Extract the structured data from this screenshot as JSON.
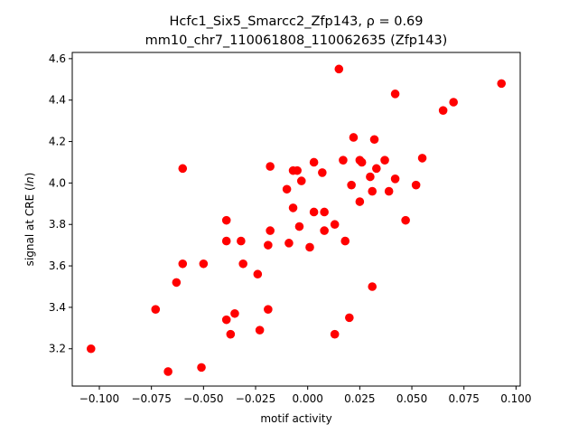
{
  "chart_data": {
    "type": "scatter",
    "title_line1_prefix": "Hcfc1_Six5_Smarcc2_Zfp143, ",
    "title_line1_rho": "ρ = 0.69",
    "title_line2": "mm10_chr7_110061808_110062635 (Zfp143)",
    "xlabel": "motif activity",
    "ylabel_prefix": "signal at CRE (",
    "ylabel_italic": "ln",
    "ylabel_suffix": ")",
    "xlim": [
      -0.113,
      0.102
    ],
    "ylim": [
      3.02,
      4.63
    ],
    "x_ticks": [
      -0.1,
      -0.075,
      -0.05,
      -0.025,
      0.0,
      0.025,
      0.05,
      0.075,
      0.1
    ],
    "x_tick_labels": [
      "−0.100",
      "−0.075",
      "−0.050",
      "−0.025",
      "0.000",
      "0.025",
      "0.050",
      "0.075",
      "0.100"
    ],
    "y_ticks": [
      3.2,
      3.4,
      3.6,
      3.8,
      4.0,
      4.2,
      4.4,
      4.6
    ],
    "y_tick_labels": [
      "3.2",
      "3.4",
      "3.6",
      "3.8",
      "4.0",
      "4.2",
      "4.4",
      "4.6"
    ],
    "grid": false,
    "marker_color": "#ff0000",
    "points": [
      [
        -0.104,
        3.2
      ],
      [
        -0.073,
        3.39
      ],
      [
        -0.067,
        3.09
      ],
      [
        -0.063,
        3.52
      ],
      [
        -0.06,
        4.07
      ],
      [
        -0.06,
        3.61
      ],
      [
        -0.05,
        3.61
      ],
      [
        -0.051,
        3.11
      ],
      [
        -0.039,
        3.82
      ],
      [
        -0.039,
        3.72
      ],
      [
        -0.039,
        3.34
      ],
      [
        -0.037,
        3.27
      ],
      [
        -0.035,
        3.37
      ],
      [
        -0.032,
        3.72
      ],
      [
        -0.031,
        3.61
      ],
      [
        -0.024,
        3.56
      ],
      [
        -0.023,
        3.29
      ],
      [
        -0.019,
        3.7
      ],
      [
        -0.019,
        3.39
      ],
      [
        -0.018,
        4.08
      ],
      [
        -0.018,
        3.77
      ],
      [
        -0.01,
        3.97
      ],
      [
        -0.009,
        3.71
      ],
      [
        -0.007,
        4.06
      ],
      [
        -0.007,
        3.88
      ],
      [
        -0.005,
        4.06
      ],
      [
        -0.004,
        3.79
      ],
      [
        -0.003,
        4.01
      ],
      [
        0.001,
        3.69
      ],
      [
        0.003,
        3.86
      ],
      [
        0.003,
        4.1
      ],
      [
        0.007,
        4.05
      ],
      [
        0.008,
        3.86
      ],
      [
        0.008,
        3.77
      ],
      [
        0.013,
        3.8
      ],
      [
        0.013,
        3.27
      ],
      [
        0.015,
        4.55
      ],
      [
        0.017,
        4.11
      ],
      [
        0.018,
        3.72
      ],
      [
        0.02,
        3.35
      ],
      [
        0.021,
        3.99
      ],
      [
        0.022,
        4.22
      ],
      [
        0.025,
        3.91
      ],
      [
        0.025,
        4.11
      ],
      [
        0.026,
        4.1
      ],
      [
        0.03,
        4.03
      ],
      [
        0.031,
        3.96
      ],
      [
        0.031,
        3.5
      ],
      [
        0.032,
        4.21
      ],
      [
        0.033,
        4.07
      ],
      [
        0.037,
        4.11
      ],
      [
        0.039,
        3.96
      ],
      [
        0.042,
        4.02
      ],
      [
        0.042,
        4.43
      ],
      [
        0.047,
        3.82
      ],
      [
        0.052,
        3.99
      ],
      [
        0.055,
        4.12
      ],
      [
        0.065,
        4.35
      ],
      [
        0.07,
        4.39
      ],
      [
        0.093,
        4.48
      ]
    ]
  }
}
